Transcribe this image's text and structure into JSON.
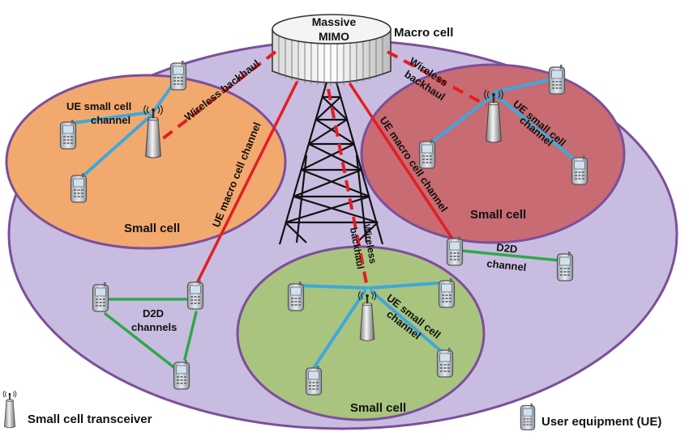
{
  "labels": {
    "massive_mimo_line1": "Massive",
    "massive_mimo_line2": "MIMO",
    "macro_cell": "Macro cell",
    "small_cell_left": "Small cell",
    "small_cell_right": "Small cell",
    "small_cell_bottom": "Small cell",
    "ue_small_cell_left_1": "UE small cell",
    "ue_small_cell_left_2": "channel",
    "ue_small_cell_right_1": "UE small cell",
    "ue_small_cell_right_2": "channel",
    "ue_small_cell_bottom_1": "UE small cell",
    "ue_small_cell_bottom_2": "channel",
    "wireless_backhaul_left": "Wireless backhaul",
    "wireless_backhaul_right_1": "Wireless",
    "wireless_backhaul_right_2": "backhaul",
    "wireless_backhaul_center_1": "Wireless",
    "wireless_backhaul_center_2": "backhaul",
    "ue_macro_left": "UE macro cell channel",
    "ue_macro_right": "UE macro cell channel",
    "d2d_left_1": "D2D",
    "d2d_left_2": "channels",
    "d2d_right_1": "D2D",
    "d2d_right_2": "channel"
  },
  "legend": {
    "transceiver": "Small cell transceiver",
    "user_equipment": "User equipment (UE)"
  },
  "colors": {
    "macro_cell": "#c8bde0",
    "small_cell_left": "#f2a96e",
    "small_cell_right": "#c86b72",
    "small_cell_bottom": "#a9c47e",
    "ue_small_cell_link": "#3fa8dc",
    "macro_link": "#e31e24",
    "backhaul": "#e31e24",
    "d2d_link": "#2ea84a"
  },
  "icons": [
    "small-cell-transceiver-icon",
    "user-equipment-icon",
    "macro-tower-icon",
    "massive-mimo-array-icon"
  ]
}
